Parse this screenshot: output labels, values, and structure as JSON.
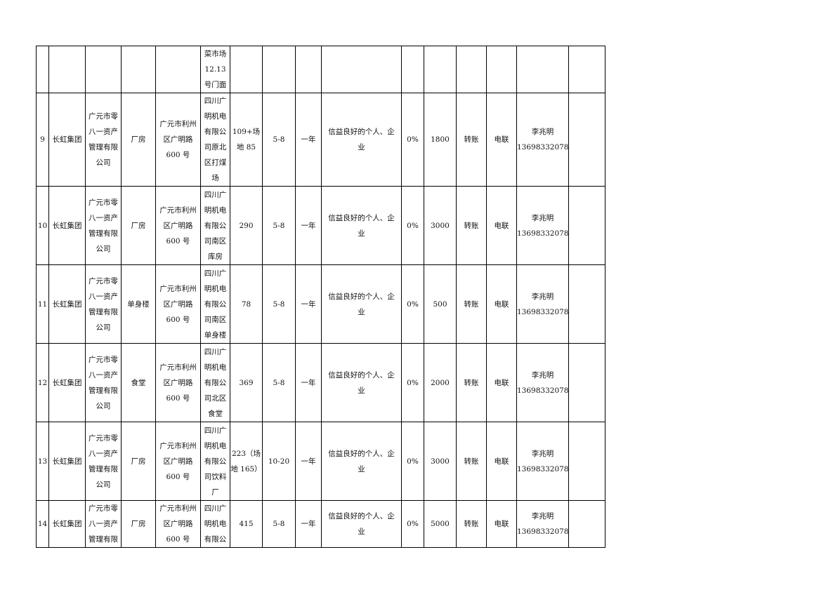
{
  "rows": [
    {
      "cells": [
        "",
        "",
        "",
        "",
        "",
        "菜市场\n12.13\n号门面",
        "",
        "",
        "",
        "",
        "",
        "",
        "",
        "",
        "",
        ""
      ],
      "height": 3
    },
    {
      "cells": [
        "9",
        "长虹集团",
        "广元市零\n八一资产\n管理有限\n公司",
        "厂房",
        "广元市利州\n区广明路\n600 号",
        "四川广\n明机电\n有限公\n司原北\n区打煤\n场",
        "109+场\n地 85",
        "5-8",
        "一年",
        "信益良好的个人、企\n业",
        "0%",
        "1800",
        "转账",
        "电联",
        "李兆明\n13698332078",
        ""
      ],
      "height": 6
    },
    {
      "cells": [
        "10",
        "长虹集团",
        "广元市零\n八一资产\n管理有限\n公司",
        "厂房",
        "广元市利州\n区广明路\n600 号",
        "四川广\n明机电\n有限公\n司南区\n库房",
        "290",
        "5-8",
        "一年",
        "信益良好的个人、企\n业",
        "0%",
        "3000",
        "转账",
        "电联",
        "李兆明\n13698332078",
        ""
      ],
      "height": 5
    },
    {
      "cells": [
        "11",
        "长虹集团",
        "广元市零\n八一资产\n管理有限\n公司",
        "单身楼",
        "广元市利州\n区广明路\n600 号",
        "四川广\n明机电\n有限公\n司南区\n单身楼",
        "78",
        "5-8",
        "一年",
        "信益良好的个人、企\n业",
        "0%",
        "500",
        "转账",
        "电联",
        "李兆明\n13698332078",
        ""
      ],
      "height": 5
    },
    {
      "cells": [
        "12",
        "长虹集团",
        "广元市零\n八一资产\n管理有限\n公司",
        "食堂",
        "广元市利州\n区广明路\n600 号",
        "四川广\n明机电\n有限公\n司北区\n食堂",
        "369",
        "5-8",
        "一年",
        "信益良好的个人、企\n业",
        "0%",
        "2000",
        "转账",
        "电联",
        "李兆明\n13698332078",
        ""
      ],
      "height": 5
    },
    {
      "cells": [
        "13",
        "长虹集团",
        "广元市零\n八一资产\n管理有限\n公司",
        "厂房",
        "广元市利州\n区广明路\n600 号",
        "四川广\n明机电\n有限公\n司饮料\n厂",
        "223（场\n地 165）",
        "10-20",
        "一年",
        "信益良好的个人、企\n业",
        "0%",
        "3000",
        "转账",
        "电联",
        "李兆明\n13698332078",
        ""
      ],
      "height": 5
    },
    {
      "cells": [
        "14",
        "长虹集团",
        "广元市零\n八一资产\n管理有限",
        "厂房",
        "广元市利州\n区广明路\n600 号",
        "四川广\n明机电\n有限公",
        "415",
        "5-8",
        "一年",
        "信益良好的个人、企\n业",
        "0%",
        "5000",
        "转账",
        "电联",
        "李兆明\n13698332078",
        ""
      ],
      "height": 3
    }
  ]
}
